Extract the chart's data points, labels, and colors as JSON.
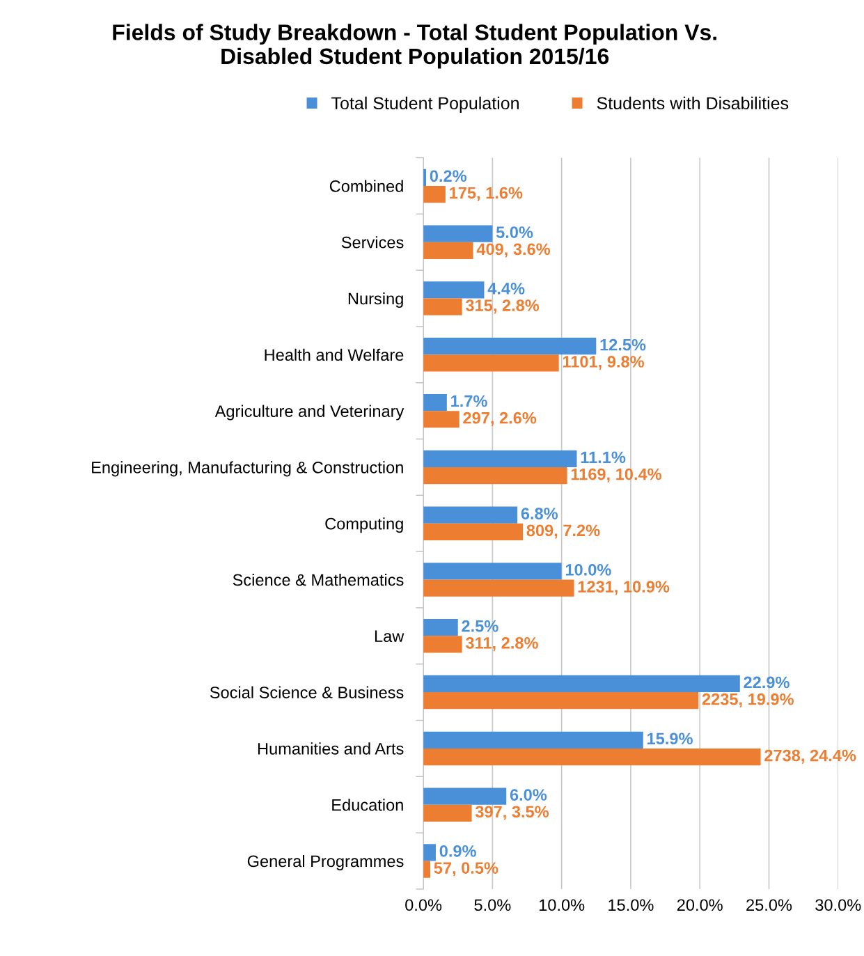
{
  "chart_data": {
    "type": "bar",
    "orientation": "horizontal",
    "title": "Fields of Study Breakdown - Total Student Population Vs.\nDisabled Student Population 2015/16",
    "categories": [
      "Combined",
      "Services",
      "Nursing",
      "Health and Welfare",
      "Agriculture and Veterinary",
      "Engineering, Manufacturing & Construction",
      "Computing",
      "Science & Mathematics",
      "Law",
      "Social Science & Business",
      "Humanities and Arts",
      "Education",
      "General Programmes"
    ],
    "series": [
      {
        "name": "Total Student Population",
        "color": "#4a90d9",
        "values": [
          0.2,
          5.0,
          4.4,
          12.5,
          1.7,
          11.1,
          6.8,
          10.0,
          2.5,
          22.9,
          15.9,
          6.0,
          0.9
        ],
        "value_labels": [
          "0.2%",
          "5.0%",
          "4.4%",
          "12.5%",
          "1.7%",
          "11.1%",
          "6.8%",
          "10.0%",
          "2.5%",
          "22.9%",
          "15.9%",
          "6.0%",
          "0.9%"
        ]
      },
      {
        "name": "Students with Disabilities",
        "color": "#ed7d31",
        "values": [
          1.6,
          3.6,
          2.8,
          9.8,
          2.6,
          10.4,
          7.2,
          10.9,
          2.8,
          19.9,
          24.4,
          3.5,
          0.5
        ],
        "value_labels": [
          "175, 1.6%",
          "409, 3.6%",
          "315, 2.8%",
          "1101, 9.8%",
          "297, 2.6%",
          "1169, 10.4%",
          "809, 7.2%",
          "1231, 10.9%",
          "311, 2.8%",
          "2235, 19.9%",
          "2738, 24.4%",
          "397, 3.5%",
          "57, 0.5%"
        ]
      }
    ],
    "xlim": [
      0,
      30
    ],
    "xticks": [
      {
        "value": 0,
        "label": "0.0%"
      },
      {
        "value": 5,
        "label": "5.0%"
      },
      {
        "value": 10,
        "label": "10.0%"
      },
      {
        "value": 15,
        "label": "15.0%"
      },
      {
        "value": 20,
        "label": "20.0%"
      },
      {
        "value": 25,
        "label": "25.0%"
      },
      {
        "value": 30,
        "label": "30.0%"
      }
    ],
    "grid": "x",
    "legend": "top"
  }
}
